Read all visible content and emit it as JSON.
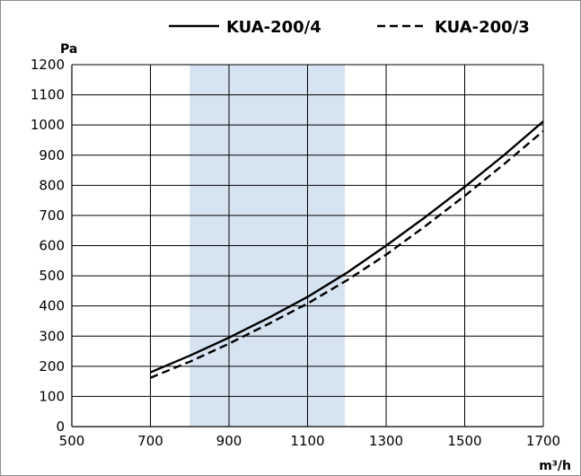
{
  "chart_data": {
    "type": "line",
    "title": "",
    "xlabel": "m³/h",
    "ylabel": "Pa",
    "xlim": [
      500,
      1700
    ],
    "ylim": [
      0,
      1200
    ],
    "x_ticks": [
      "500",
      "700",
      "900",
      "1100",
      "1300",
      "1500",
      "1700"
    ],
    "y_ticks": [
      "0",
      "100",
      "200",
      "300",
      "400",
      "500",
      "600",
      "700",
      "800",
      "900",
      "1000",
      "1100",
      "1200"
    ],
    "grid": true,
    "highlight_range_x": [
      800,
      1195
    ],
    "highlight_color": "#d6e3f0",
    "legend_position": "top",
    "series": [
      {
        "name": "KUA-200/4",
        "style": "solid",
        "x": [
          700,
          800,
          900,
          1000,
          1100,
          1200,
          1300,
          1400,
          1500,
          1600,
          1700
        ],
        "y": [
          180,
          235,
          295,
          360,
          430,
          510,
          600,
          695,
          795,
          900,
          1012
        ]
      },
      {
        "name": "KUA-200/3",
        "style": "dashed",
        "x": [
          700,
          800,
          900,
          1000,
          1100,
          1200,
          1300,
          1400,
          1500,
          1600,
          1700
        ],
        "y": [
          162,
          215,
          275,
          340,
          408,
          485,
          570,
          665,
          765,
          870,
          980
        ]
      }
    ]
  }
}
